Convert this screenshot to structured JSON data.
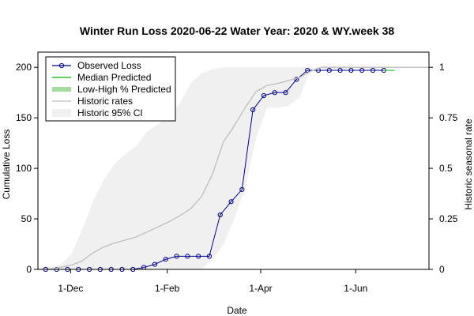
{
  "chart_data": {
    "type": "line",
    "title": "Winter Run Loss 2020-06-22  Water Year: 2020 & WY.week 38",
    "xlabel": "Date",
    "ylabel": "Cumulative Loss",
    "y2label": "Historic seasonal rate",
    "x_domain": [
      "2019-11-10",
      "2020-07-18"
    ],
    "ylim": [
      0,
      215
    ],
    "y2lim": [
      0,
      1.075
    ],
    "x_ticks": [
      {
        "date": "2019-12-01",
        "label": "1-Dec"
      },
      {
        "date": "2020-02-01",
        "label": "1-Feb"
      },
      {
        "date": "2020-04-01",
        "label": "1-Apr"
      },
      {
        "date": "2020-06-01",
        "label": "1-Jun"
      }
    ],
    "y_ticks": [
      0,
      50,
      100,
      150,
      200
    ],
    "y2_ticks": [
      {
        "value": 0,
        "label": "0"
      },
      {
        "value": 0.25,
        "label": "0.25"
      },
      {
        "value": 0.5,
        "label": "0.5"
      },
      {
        "value": 0.75,
        "label": "0.75"
      },
      {
        "value": 1,
        "label": "1"
      }
    ],
    "legend": {
      "position": "top-left",
      "items": [
        {
          "label": "Observed Loss",
          "kind": "line-point",
          "color": "#00008b"
        },
        {
          "label": "Median Predicted",
          "kind": "line",
          "color": "#00b000"
        },
        {
          "label": "Low-High % Predicted",
          "kind": "thick-line",
          "color": "#a6dba0"
        },
        {
          "label": "Historic rates",
          "kind": "line",
          "color": "#bebebe"
        },
        {
          "label": "Historic 95% CI",
          "kind": "fill",
          "color": "#f0f0f0"
        }
      ]
    },
    "series": [
      {
        "name": "Observed Loss",
        "axis": "left",
        "color": "#00008b",
        "dates": [
          "2019-11-15",
          "2019-11-22",
          "2019-11-29",
          "2019-12-06",
          "2019-12-13",
          "2019-12-20",
          "2019-12-27",
          "2020-01-03",
          "2020-01-10",
          "2020-01-17",
          "2020-01-24",
          "2020-01-31",
          "2020-02-07",
          "2020-02-14",
          "2020-02-21",
          "2020-02-28",
          "2020-03-06",
          "2020-03-13",
          "2020-03-20",
          "2020-03-27",
          "2020-04-03",
          "2020-04-10",
          "2020-04-17",
          "2020-04-24",
          "2020-05-01",
          "2020-05-08",
          "2020-05-15",
          "2020-05-22",
          "2020-05-29",
          "2020-06-05",
          "2020-06-12",
          "2020-06-19"
        ],
        "values": [
          0,
          0,
          0,
          0,
          0,
          0,
          0,
          0,
          0,
          2,
          5,
          10,
          13,
          13,
          13,
          13,
          54,
          67,
          79,
          158,
          172,
          175,
          175,
          188,
          197,
          197,
          197,
          197,
          197,
          197,
          197,
          197
        ]
      },
      {
        "name": "Median Predicted",
        "axis": "left",
        "color": "#00b000",
        "dates": [
          "2020-06-19",
          "2020-06-26"
        ],
        "values": [
          197,
          197
        ]
      },
      {
        "name": "Historic rates",
        "axis": "right",
        "color": "#bebebe",
        "dates": [
          "2019-11-10",
          "2019-11-17",
          "2019-11-24",
          "2019-12-01",
          "2019-12-08",
          "2019-12-15",
          "2019-12-22",
          "2019-12-29",
          "2020-01-05",
          "2020-01-12",
          "2020-01-19",
          "2020-01-26",
          "2020-02-02",
          "2020-02-09",
          "2020-02-16",
          "2020-02-23",
          "2020-03-01",
          "2020-03-08",
          "2020-03-15",
          "2020-03-22",
          "2020-03-29",
          "2020-04-05",
          "2020-04-12",
          "2020-04-19",
          "2020-04-26",
          "2020-05-03",
          "2020-05-10",
          "2020-07-18"
        ],
        "values": [
          0,
          0,
          0.01,
          0.02,
          0.04,
          0.08,
          0.11,
          0.13,
          0.145,
          0.16,
          0.185,
          0.21,
          0.235,
          0.265,
          0.3,
          0.36,
          0.47,
          0.63,
          0.71,
          0.8,
          0.88,
          0.91,
          0.92,
          0.935,
          0.95,
          0.98,
          1,
          1
        ]
      }
    ],
    "ci_band": {
      "name": "Historic 95% CI",
      "axis": "right",
      "color": "#f0f0f0",
      "upper": {
        "dates": [
          "2019-11-10",
          "2019-11-24",
          "2019-12-01",
          "2019-12-08",
          "2019-12-15",
          "2019-12-22",
          "2019-12-29",
          "2020-01-05",
          "2020-01-12",
          "2020-01-19",
          "2020-01-26",
          "2020-02-02",
          "2020-02-09",
          "2020-02-16",
          "2020-02-23",
          "2020-03-01",
          "2020-03-08",
          "2020-03-15",
          "2020-03-22",
          "2020-03-29",
          "2020-07-18"
        ],
        "values": [
          0,
          0.02,
          0.07,
          0.19,
          0.33,
          0.44,
          0.52,
          0.57,
          0.61,
          0.68,
          0.72,
          0.76,
          0.82,
          0.92,
          0.97,
          0.99,
          1,
          1,
          1,
          1,
          1
        ]
      },
      "lower": {
        "dates": [
          "2019-11-10",
          "2019-11-24",
          "2019-12-01",
          "2019-12-08",
          "2019-12-15",
          "2019-12-22",
          "2019-12-29",
          "2020-01-05",
          "2020-01-12",
          "2020-01-19",
          "2020-01-26",
          "2020-02-02",
          "2020-02-09",
          "2020-02-16",
          "2020-02-23",
          "2020-03-01",
          "2020-03-08",
          "2020-03-15",
          "2020-03-22",
          "2020-03-29",
          "2020-04-05",
          "2020-04-12",
          "2020-04-19",
          "2020-04-26",
          "2020-05-03",
          "2020-07-18"
        ],
        "values": [
          0,
          0,
          0,
          0,
          0,
          0,
          0,
          0,
          0,
          0,
          0,
          0,
          0,
          0,
          0,
          0.05,
          0.12,
          0.25,
          0.4,
          0.65,
          0.8,
          0.8,
          0.81,
          0.85,
          0.99,
          1
        ]
      }
    }
  }
}
